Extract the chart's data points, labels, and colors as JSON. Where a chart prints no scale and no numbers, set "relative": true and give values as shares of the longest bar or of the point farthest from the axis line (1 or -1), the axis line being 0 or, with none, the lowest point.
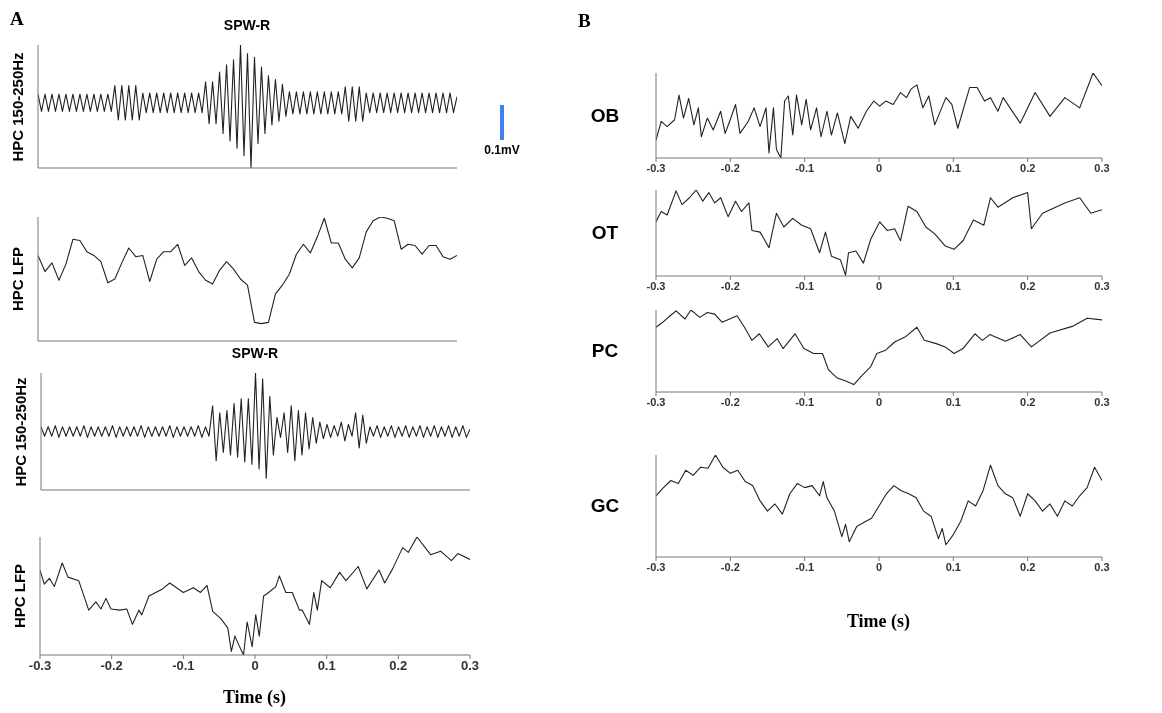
{
  "chart_data": [
    {
      "type": "line",
      "title": "SPW-R",
      "ylabel": "HPC 150-250Hz",
      "relative": true,
      "annotations": [
        "A",
        "0.1mV"
      ],
      "categories": [
        null,
        null,
        null,
        null,
        null,
        null,
        null,
        null,
        null,
        null,
        null,
        null,
        null,
        null,
        null,
        null,
        null,
        null,
        null,
        null,
        null,
        null,
        null,
        null,
        null,
        null,
        null,
        null,
        null,
        null,
        null,
        null,
        null,
        null,
        null,
        null,
        null,
        null,
        null,
        null,
        null,
        null,
        null,
        null,
        null,
        null,
        null,
        null,
        null,
        null,
        null,
        null,
        null,
        null,
        null,
        null,
        null,
        null,
        null,
        null,
        null,
        null,
        null,
        null,
        null,
        null,
        null,
        null,
        null,
        null,
        null,
        null,
        null,
        null,
        null,
        null,
        null,
        null,
        null,
        null,
        null,
        null,
        null,
        null,
        null,
        null,
        null,
        null,
        null,
        null,
        null,
        null,
        null,
        null,
        null,
        null,
        null,
        null,
        null,
        null,
        null,
        null,
        null,
        null,
        null,
        null,
        null,
        null,
        null,
        null,
        null,
        null,
        null,
        null,
        null,
        null,
        null,
        null,
        null,
        null,
        null
      ],
      "series": [
        {
          "color": "#222222",
          "values": [
            0.6,
            0.46,
            0.6,
            0.46,
            0.6,
            0.46,
            0.6,
            0.46,
            0.6,
            0.46,
            0.6,
            0.46,
            0.6,
            0.46,
            0.6,
            0.46,
            0.6,
            0.46,
            0.6,
            0.46,
            0.6,
            0.46,
            0.67,
            0.39,
            0.67,
            0.39,
            0.67,
            0.39,
            0.67,
            0.39,
            0.61,
            0.45,
            0.61,
            0.45,
            0.61,
            0.45,
            0.61,
            0.45,
            0.61,
            0.45,
            0.61,
            0.45,
            0.61,
            0.45,
            0.61,
            0.45,
            0.61,
            0.45,
            0.7,
            0.36,
            0.7,
            0.36,
            0.78,
            0.28,
            0.84,
            0.22,
            0.88,
            0.16,
            1.0,
            0.1,
            0.93,
            0.0,
            0.9,
            0.2,
            0.82,
            0.28,
            0.75,
            0.35,
            0.72,
            0.38,
            0.68,
            0.42,
            0.62,
            0.44,
            0.62,
            0.44,
            0.62,
            0.44,
            0.62,
            0.44,
            0.62,
            0.44,
            0.62,
            0.44,
            0.62,
            0.44,
            0.62,
            0.44,
            0.66,
            0.38,
            0.66,
            0.38,
            0.66,
            0.38,
            0.61,
            0.45,
            0.61,
            0.45,
            0.61,
            0.45,
            0.61,
            0.45,
            0.61,
            0.45,
            0.61,
            0.45,
            0.61,
            0.45,
            0.61,
            0.45,
            0.61,
            0.45,
            0.61,
            0.45,
            0.61,
            0.45,
            0.61,
            0.45,
            0.61,
            0.45,
            0.58
          ]
        }
      ]
    },
    {
      "type": "line",
      "ylabel": "HPC LFP",
      "relative": true,
      "categories": [
        null,
        null,
        null,
        null,
        null,
        null,
        null,
        null,
        null,
        null,
        null,
        null,
        null,
        null,
        null,
        null,
        null,
        null,
        null,
        null,
        null,
        null,
        null,
        null,
        null,
        null,
        null,
        null,
        null,
        null,
        null,
        null,
        null,
        null,
        null,
        null,
        null,
        null,
        null,
        null,
        null,
        null,
        null,
        null,
        null,
        null,
        null,
        null,
        null,
        null,
        null,
        null,
        null,
        null,
        null,
        null,
        null,
        null,
        null,
        null,
        null
      ],
      "series": [
        {
          "color": "#222222",
          "values": [
            0.69,
            0.56,
            0.63,
            0.49,
            0.62,
            0.82,
            0.81,
            0.72,
            0.69,
            0.64,
            0.47,
            0.5,
            0.63,
            0.75,
            0.68,
            0.69,
            0.48,
            0.66,
            0.72,
            0.72,
            0.78,
            0.61,
            0.67,
            0.56,
            0.49,
            0.46,
            0.57,
            0.64,
            0.58,
            0.5,
            0.45,
            0.15,
            0.14,
            0.15,
            0.38,
            0.45,
            0.54,
            0.7,
            0.78,
            0.71,
            0.84,
            0.99,
            0.79,
            0.79,
            0.66,
            0.59,
            0.67,
            0.88,
            0.97,
            1.0,
            0.99,
            0.97,
            0.74,
            0.78,
            0.77,
            0.7,
            0.77,
            0.77,
            0.68,
            0.66,
            0.69
          ]
        }
      ]
    },
    {
      "type": "line",
      "title": "SPW-R",
      "ylabel": "HPC 150-250Hz",
      "relative": true,
      "categories": [
        null,
        null,
        null,
        null,
        null,
        null,
        null,
        null,
        null,
        null,
        null,
        null,
        null,
        null,
        null,
        null,
        null,
        null,
        null,
        null,
        null,
        null,
        null,
        null,
        null,
        null,
        null,
        null,
        null,
        null,
        null,
        null,
        null,
        null,
        null,
        null,
        null,
        null,
        null,
        null,
        null,
        null,
        null,
        null,
        null,
        null,
        null,
        null,
        null,
        null,
        null,
        null,
        null,
        null,
        null,
        null,
        null,
        null,
        null,
        null,
        null,
        null,
        null,
        null,
        null,
        null,
        null,
        null,
        null,
        null,
        null,
        null,
        null,
        null,
        null,
        null,
        null,
        null,
        null,
        null,
        null,
        null,
        null,
        null,
        null,
        null,
        null,
        null,
        null,
        null,
        null,
        null,
        null,
        null,
        null,
        null,
        null,
        null,
        null,
        null,
        null,
        null,
        null,
        null,
        null,
        null,
        null,
        null,
        null,
        null,
        null,
        null,
        null,
        null,
        null,
        null,
        null,
        null,
        null,
        null,
        null
      ],
      "series": [
        {
          "color": "#222222",
          "values": [
            0.54,
            0.46,
            0.54,
            0.46,
            0.55,
            0.45,
            0.54,
            0.46,
            0.54,
            0.46,
            0.54,
            0.46,
            0.55,
            0.45,
            0.54,
            0.46,
            0.54,
            0.46,
            0.54,
            0.46,
            0.55,
            0.45,
            0.54,
            0.46,
            0.54,
            0.46,
            0.54,
            0.46,
            0.55,
            0.45,
            0.54,
            0.46,
            0.54,
            0.46,
            0.54,
            0.46,
            0.55,
            0.45,
            0.54,
            0.46,
            0.54,
            0.46,
            0.54,
            0.46,
            0.55,
            0.45,
            0.54,
            0.46,
            0.72,
            0.25,
            0.66,
            0.32,
            0.68,
            0.3,
            0.74,
            0.28,
            0.78,
            0.24,
            0.78,
            0.22,
            1.0,
            0.18,
            0.95,
            0.1,
            0.8,
            0.3,
            0.62,
            0.45,
            0.66,
            0.32,
            0.72,
            0.25,
            0.68,
            0.3,
            0.66,
            0.35,
            0.62,
            0.4,
            0.58,
            0.44,
            0.56,
            0.45,
            0.55,
            0.46,
            0.58,
            0.42,
            0.56,
            0.46,
            0.66,
            0.36,
            0.64,
            0.4,
            0.54,
            0.46,
            0.55,
            0.45,
            0.54,
            0.46,
            0.55,
            0.45,
            0.54,
            0.46,
            0.55,
            0.45,
            0.54,
            0.46,
            0.55,
            0.45,
            0.54,
            0.46,
            0.55,
            0.45,
            0.54,
            0.46,
            0.55,
            0.45,
            0.54,
            0.46,
            0.55,
            0.45,
            0.52
          ]
        }
      ]
    },
    {
      "type": "line",
      "ylabel": "HPC LFP",
      "xlabel": "Time (s)",
      "relative": true,
      "xlim": [
        -0.3,
        0.3
      ],
      "xticks": [
        -0.3,
        -0.2,
        -0.1,
        0,
        0.1,
        0.2,
        0.3
      ],
      "x": [
        -0.3,
        -0.294,
        -0.287,
        -0.28,
        -0.269,
        -0.261,
        -0.246,
        -0.232,
        -0.222,
        -0.215,
        -0.208,
        -0.201,
        -0.189,
        -0.179,
        -0.171,
        -0.162,
        -0.158,
        -0.148,
        -0.129,
        -0.119,
        -0.1,
        -0.086,
        -0.076,
        -0.067,
        -0.059,
        -0.048,
        -0.038,
        -0.033,
        -0.028,
        -0.023,
        -0.016,
        -0.011,
        -0.004,
        0.001,
        0.006,
        0.012,
        0.019,
        0.029,
        0.034,
        0.043,
        0.052,
        0.062,
        0.066,
        0.076,
        0.082,
        0.087,
        0.093,
        0.105,
        0.118,
        0.127,
        0.144,
        0.156,
        0.173,
        0.181,
        0.192,
        0.206,
        0.214,
        0.226,
        0.245,
        0.259,
        0.274,
        0.283,
        0.3
      ],
      "series": [
        {
          "color": "#222222",
          "values": [
            0.72,
            0.6,
            0.65,
            0.58,
            0.78,
            0.66,
            0.63,
            0.38,
            0.45,
            0.39,
            0.48,
            0.39,
            0.38,
            0.39,
            0.26,
            0.38,
            0.34,
            0.5,
            0.56,
            0.61,
            0.53,
            0.57,
            0.53,
            0.59,
            0.37,
            0.31,
            0.23,
            0.03,
            0.16,
            0.09,
            0.0,
            0.28,
            0.07,
            0.34,
            0.16,
            0.5,
            0.53,
            0.58,
            0.67,
            0.53,
            0.53,
            0.38,
            0.38,
            0.26,
            0.53,
            0.38,
            0.63,
            0.57,
            0.7,
            0.63,
            0.75,
            0.56,
            0.72,
            0.61,
            0.73,
            0.91,
            0.87,
            1.0,
            0.85,
            0.88,
            0.8,
            0.86,
            0.81
          ]
        }
      ]
    },
    {
      "type": "line",
      "ylabel": "OB",
      "relative": true,
      "xlim": [
        -0.3,
        0.3
      ],
      "xticks": [
        -0.3,
        -0.2,
        -0.1,
        0,
        0.1,
        0.2,
        0.3
      ],
      "annotations": [
        "B"
      ],
      "x": [
        -0.3,
        -0.293,
        -0.285,
        -0.275,
        -0.269,
        -0.263,
        -0.256,
        -0.249,
        -0.243,
        -0.239,
        -0.231,
        -0.223,
        -0.213,
        -0.207,
        -0.201,
        -0.193,
        -0.187,
        -0.176,
        -0.168,
        -0.16,
        -0.152,
        -0.148,
        -0.142,
        -0.138,
        -0.132,
        -0.127,
        -0.122,
        -0.116,
        -0.111,
        -0.104,
        -0.098,
        -0.092,
        -0.084,
        -0.078,
        -0.07,
        -0.064,
        -0.056,
        -0.046,
        -0.038,
        -0.028,
        -0.017,
        -0.007,
        0.001,
        0.009,
        0.019,
        0.029,
        0.037,
        0.043,
        0.051,
        0.059,
        0.067,
        0.075,
        0.09,
        0.098,
        0.106,
        0.122,
        0.132,
        0.142,
        0.15,
        0.16,
        0.167,
        0.19,
        0.21,
        0.23,
        0.25,
        0.27,
        0.288,
        0.3
      ],
      "series": [
        {
          "color": "#222222",
          "values": [
            0.21,
            0.43,
            0.37,
            0.45,
            0.74,
            0.47,
            0.7,
            0.39,
            0.59,
            0.25,
            0.47,
            0.33,
            0.55,
            0.29,
            0.43,
            0.63,
            0.29,
            0.43,
            0.59,
            0.37,
            0.59,
            0.06,
            0.59,
            0.1,
            0.0,
            0.67,
            0.73,
            0.27,
            0.74,
            0.39,
            0.69,
            0.33,
            0.59,
            0.25,
            0.55,
            0.27,
            0.53,
            0.17,
            0.49,
            0.35,
            0.55,
            0.67,
            0.61,
            0.67,
            0.63,
            0.77,
            0.71,
            0.81,
            0.86,
            0.59,
            0.73,
            0.39,
            0.71,
            0.63,
            0.35,
            0.83,
            0.83,
            0.67,
            0.71,
            0.55,
            0.71,
            0.41,
            0.77,
            0.49,
            0.71,
            0.59,
            1.0,
            0.85
          ]
        }
      ]
    },
    {
      "type": "line",
      "ylabel": "OT",
      "relative": true,
      "xlim": [
        -0.3,
        0.3
      ],
      "xticks": [
        -0.3,
        -0.2,
        -0.1,
        0,
        0.1,
        0.2,
        0.3
      ],
      "x": [
        -0.3,
        -0.293,
        -0.285,
        -0.273,
        -0.265,
        -0.255,
        -0.246,
        -0.237,
        -0.229,
        -0.221,
        -0.213,
        -0.203,
        -0.193,
        -0.185,
        -0.175,
        -0.171,
        -0.16,
        -0.148,
        -0.138,
        -0.128,
        -0.116,
        -0.104,
        -0.092,
        -0.08,
        -0.072,
        -0.064,
        -0.052,
        -0.045,
        -0.041,
        -0.031,
        -0.021,
        -0.011,
        0.001,
        0.011,
        0.021,
        0.029,
        0.039,
        0.051,
        0.063,
        0.075,
        0.089,
        0.101,
        0.113,
        0.127,
        0.141,
        0.15,
        0.16,
        0.18,
        0.2,
        0.205,
        0.22,
        0.25,
        0.27,
        0.285,
        0.3
      ],
      "series": [
        {
          "color": "#222222",
          "values": [
            0.63,
            0.75,
            0.71,
            0.99,
            0.83,
            0.91,
            1.0,
            0.87,
            0.97,
            0.85,
            0.91,
            0.69,
            0.87,
            0.75,
            0.85,
            0.53,
            0.51,
            0.33,
            0.73,
            0.57,
            0.67,
            0.59,
            0.55,
            0.27,
            0.51,
            0.23,
            0.19,
            0.01,
            0.27,
            0.29,
            0.15,
            0.43,
            0.63,
            0.53,
            0.55,
            0.41,
            0.81,
            0.75,
            0.57,
            0.49,
            0.35,
            0.31,
            0.41,
            0.65,
            0.59,
            0.91,
            0.8,
            0.91,
            0.97,
            0.55,
            0.73,
            0.85,
            0.91,
            0.73,
            0.77
          ]
        }
      ]
    },
    {
      "type": "line",
      "ylabel": "PC",
      "relative": true,
      "xlim": [
        -0.3,
        0.3
      ],
      "xticks": [
        -0.3,
        -0.2,
        -0.1,
        0,
        0.1,
        0.2,
        0.3
      ],
      "x": [
        -0.3,
        -0.291,
        -0.281,
        -0.273,
        -0.261,
        -0.253,
        -0.241,
        -0.231,
        -0.221,
        -0.211,
        -0.201,
        -0.191,
        -0.181,
        -0.171,
        -0.161,
        -0.149,
        -0.137,
        -0.129,
        -0.113,
        -0.101,
        -0.088,
        -0.076,
        -0.068,
        -0.056,
        -0.044,
        -0.034,
        -0.022,
        -0.011,
        -0.003,
        0.009,
        0.021,
        0.035,
        0.051,
        0.061,
        0.077,
        0.089,
        0.101,
        0.113,
        0.129,
        0.139,
        0.149,
        0.17,
        0.19,
        0.205,
        0.23,
        0.26,
        0.28,
        0.3
      ],
      "series": [
        {
          "color": "#222222",
          "values": [
            0.79,
            0.85,
            0.93,
            0.99,
            0.89,
            1.0,
            0.91,
            0.97,
            0.95,
            0.85,
            0.89,
            0.93,
            0.79,
            0.63,
            0.71,
            0.55,
            0.65,
            0.53,
            0.71,
            0.53,
            0.47,
            0.47,
            0.27,
            0.17,
            0.13,
            0.09,
            0.21,
            0.31,
            0.47,
            0.51,
            0.61,
            0.67,
            0.79,
            0.63,
            0.59,
            0.55,
            0.47,
            0.53,
            0.71,
            0.63,
            0.7,
            0.62,
            0.7,
            0.55,
            0.72,
            0.8,
            0.9,
            0.88
          ]
        }
      ]
    },
    {
      "type": "line",
      "ylabel": "GC",
      "xlabel": "Time (s)",
      "relative": true,
      "xlim": [
        -0.3,
        0.3
      ],
      "xticks": [
        -0.3,
        -0.2,
        -0.1,
        0,
        0.1,
        0.2,
        0.3
      ],
      "x": [
        -0.3,
        -0.29,
        -0.28,
        -0.27,
        -0.26,
        -0.25,
        -0.24,
        -0.23,
        -0.22,
        -0.21,
        -0.2,
        -0.19,
        -0.18,
        -0.17,
        -0.16,
        -0.15,
        -0.14,
        -0.13,
        -0.12,
        -0.11,
        -0.1,
        -0.09,
        -0.08,
        -0.075,
        -0.07,
        -0.06,
        -0.05,
        -0.045,
        -0.04,
        -0.03,
        -0.02,
        -0.01,
        0,
        0.01,
        0.02,
        0.03,
        0.04,
        0.05,
        0.06,
        0.07,
        0.08,
        0.085,
        0.09,
        0.1,
        0.11,
        0.12,
        0.13,
        0.14,
        0.15,
        0.16,
        0.17,
        0.18,
        0.19,
        0.2,
        0.21,
        0.22,
        0.23,
        0.24,
        0.25,
        0.26,
        0.27,
        0.28,
        0.29,
        0.3
      ],
      "series": [
        {
          "color": "#222222",
          "values": [
            0.6,
            0.68,
            0.75,
            0.72,
            0.85,
            0.8,
            0.88,
            0.87,
            1.0,
            0.88,
            0.82,
            0.85,
            0.74,
            0.7,
            0.55,
            0.45,
            0.52,
            0.42,
            0.62,
            0.72,
            0.68,
            0.7,
            0.6,
            0.74,
            0.58,
            0.45,
            0.2,
            0.32,
            0.15,
            0.3,
            0.34,
            0.38,
            0.5,
            0.62,
            0.7,
            0.65,
            0.62,
            0.58,
            0.45,
            0.4,
            0.18,
            0.28,
            0.12,
            0.22,
            0.35,
            0.55,
            0.5,
            0.65,
            0.9,
            0.7,
            0.62,
            0.58,
            0.4,
            0.62,
            0.55,
            0.45,
            0.52,
            0.4,
            0.55,
            0.5,
            0.6,
            0.68,
            0.88,
            0.75
          ]
        }
      ]
    }
  ]
}
